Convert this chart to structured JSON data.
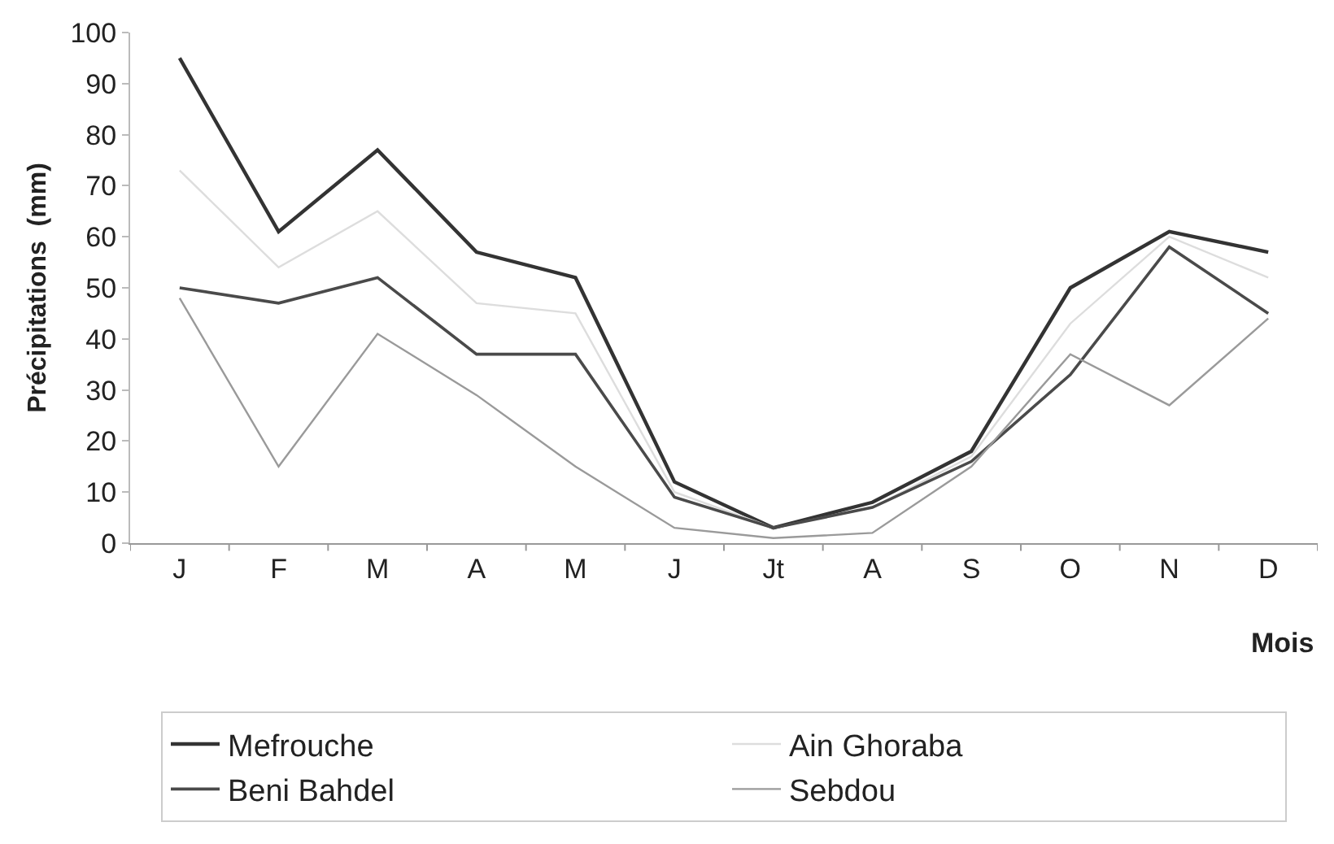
{
  "chart_data": {
    "type": "line",
    "ylabel": "Précipitations  (mm)",
    "xlabel": "Mois",
    "categories": [
      "J",
      "F",
      "M",
      "A",
      "M",
      "J",
      "Jt",
      "A",
      "S",
      "O",
      "N",
      "D"
    ],
    "series": [
      {
        "name": "Mefrouche",
        "color": "#333333",
        "values": [
          95,
          61,
          77,
          57,
          52,
          12,
          3,
          8,
          18,
          50,
          61,
          57
        ]
      },
      {
        "name": "Ain Ghoraba",
        "color": "#dddddd",
        "values": [
          73,
          54,
          65,
          47,
          45,
          10,
          3,
          7,
          17,
          43,
          60,
          52
        ]
      },
      {
        "name": "Beni Bahdel",
        "color": "#4a4a4a",
        "values": [
          50,
          47,
          52,
          37,
          37,
          9,
          3,
          7,
          16,
          33,
          58,
          45
        ]
      },
      {
        "name": "Sebdou",
        "color": "#9a9a9a",
        "values": [
          48,
          15,
          41,
          29,
          15,
          3,
          1,
          2,
          15,
          37,
          27,
          44
        ]
      }
    ],
    "ylim": [
      0,
      100
    ],
    "yticks": [
      0,
      10,
      20,
      30,
      40,
      50,
      60,
      70,
      80,
      90,
      100
    ],
    "legend": "bottom",
    "marker": "none",
    "line_style": "solid"
  }
}
